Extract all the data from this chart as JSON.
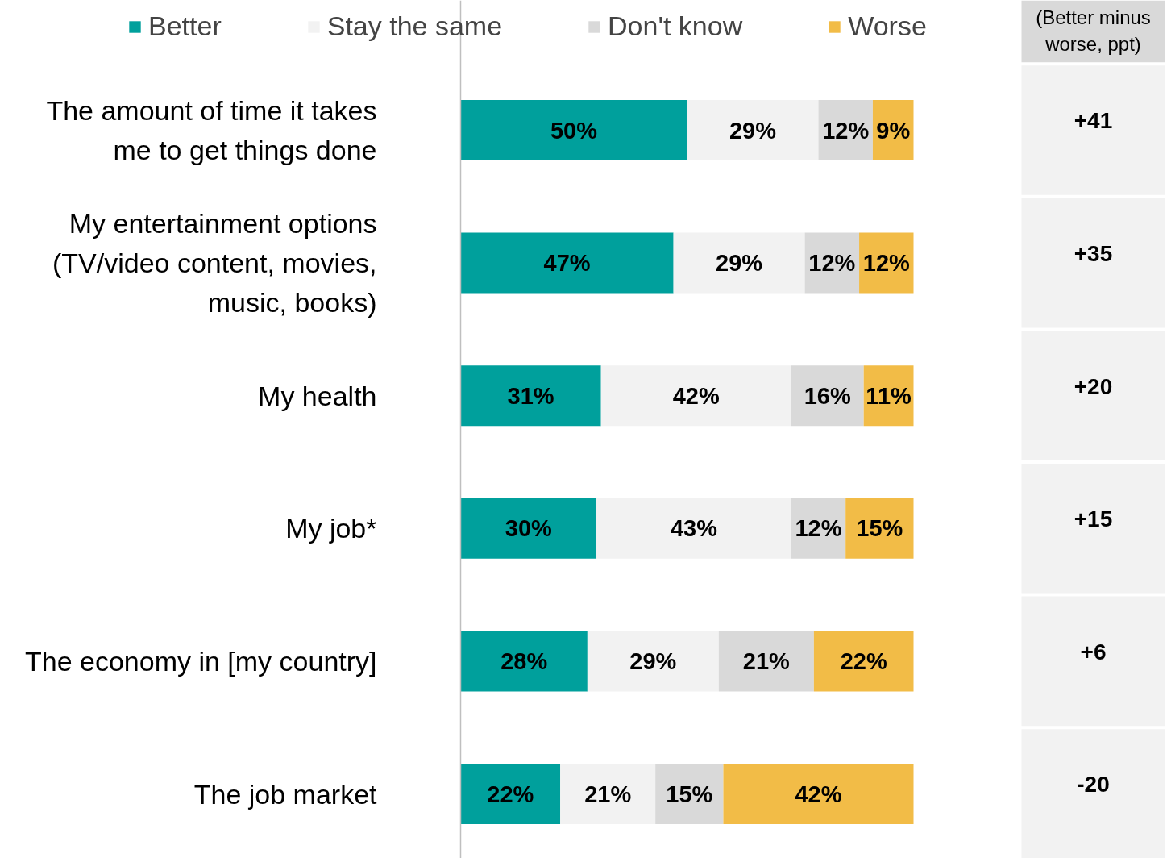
{
  "chart_data": {
    "type": "bar",
    "orientation": "horizontal",
    "stacked": true,
    "categories": [
      "The amount of time it takes me to get things done",
      "My entertainment options (TV/video content, movies, music, books)",
      "My health",
      "My job*",
      "The economy in [my country]",
      "The job market"
    ],
    "series": [
      {
        "name": "Better",
        "color": "#00a09c",
        "values": [
          50,
          47,
          31,
          30,
          28,
          22
        ],
        "value_labels": [
          "50%",
          "47%",
          "31%",
          "30%",
          "28%",
          "22%"
        ]
      },
      {
        "name": "Stay the same",
        "color": "#f2f2f2",
        "values": [
          29,
          29,
          42,
          43,
          29,
          21
        ],
        "value_labels": [
          "29%",
          "29%",
          "42%",
          "43%",
          "29%",
          "21%"
        ]
      },
      {
        "name": "Don't know",
        "color": "#d9d9d9",
        "values": [
          12,
          12,
          16,
          12,
          21,
          15
        ],
        "value_labels": [
          "12%",
          "12%",
          "16%",
          "12%",
          "21%",
          "15%"
        ]
      },
      {
        "name": "Worse",
        "color": "#f2bc47",
        "values": [
          9,
          12,
          11,
          15,
          22,
          42
        ],
        "value_labels": [
          "9%",
          "12%",
          "11%",
          "15%",
          "22%",
          "42%"
        ]
      }
    ],
    "annotations": [
      "(Better minus worse, ppt)",
      "+41",
      "+35",
      "+20",
      "+15",
      "+6",
      "-20"
    ],
    "legend": "top",
    "grid": false
  }
}
